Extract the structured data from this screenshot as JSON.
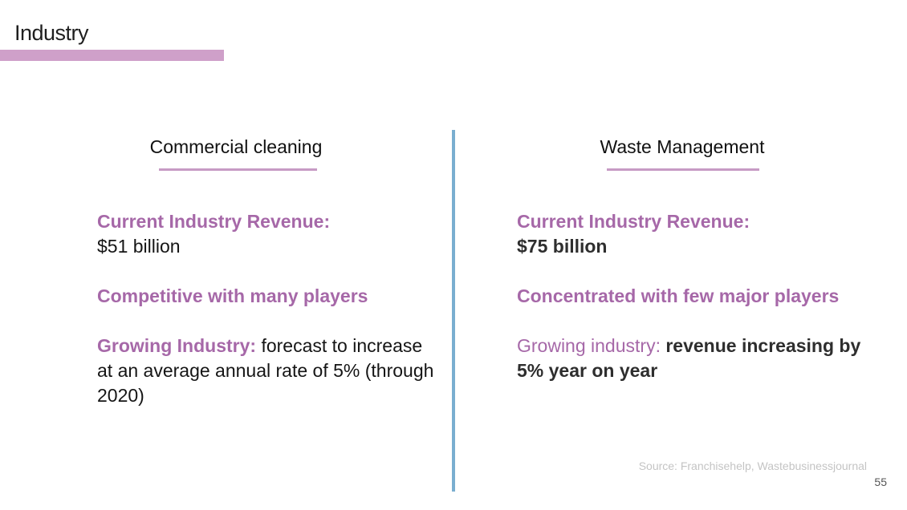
{
  "slide": {
    "title": "Industry",
    "page_number": "55",
    "source": "Source: Franchisehelp, Wastebusinessjournal"
  },
  "columns": [
    {
      "heading": "Commercial cleaning",
      "revenue_label": "Current Industry Revenue:",
      "revenue_value": "$51 billion",
      "competition": "Competitive with many players",
      "growth_label": "Growing Industry:",
      "growth_text": "forecast to increase at an average annual rate of 5% (through 2020)"
    },
    {
      "heading": "Waste Management",
      "revenue_label": "Current Industry Revenue:",
      "revenue_value": "$75 billion",
      "competition": "Concentrated with few major players",
      "growth_label": "Growing industry:",
      "growth_text": "revenue increasing by 5% year on year"
    }
  ],
  "colors": {
    "accent_purple": "#a668a8",
    "title_bar": "#cfa0c9",
    "divider_blue": "#7aaed0"
  }
}
